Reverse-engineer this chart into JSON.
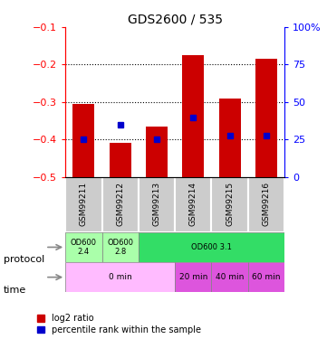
{
  "title": "GDS2600 / 535",
  "samples": [
    "GSM99211",
    "GSM99212",
    "GSM99213",
    "GSM99214",
    "GSM99215",
    "GSM99216"
  ],
  "bar_bottoms": [
    -0.5,
    -0.5,
    -0.5,
    -0.5,
    -0.5,
    -0.5
  ],
  "bar_tops": [
    -0.305,
    -0.408,
    -0.365,
    -0.175,
    -0.29,
    -0.185
  ],
  "blue_dot_pct": [
    25,
    35,
    25,
    40,
    28,
    28
  ],
  "ylim": [
    -0.5,
    -0.1
  ],
  "yticks_left": [
    -0.5,
    -0.4,
    -0.3,
    -0.2,
    -0.1
  ],
  "yticks_right": [
    0,
    25,
    50,
    75,
    100
  ],
  "bar_color": "#cc0000",
  "dot_color": "#0000cc",
  "protocol_groups": [
    {
      "label": "OD600\n2.4",
      "start": 0,
      "end": 1,
      "color": "#aaffaa"
    },
    {
      "label": "OD600\n2.8",
      "start": 1,
      "end": 2,
      "color": "#aaffaa"
    },
    {
      "label": "OD600 3.1",
      "start": 2,
      "end": 6,
      "color": "#33cc66"
    }
  ],
  "time_groups": [
    {
      "label": "0 min",
      "start": 0,
      "end": 3,
      "color": "#ffbbff"
    },
    {
      "label": "20 min",
      "start": 3,
      "end": 4,
      "color": "#dd55dd"
    },
    {
      "label": "40 min",
      "start": 4,
      "end": 5,
      "color": "#dd55dd"
    },
    {
      "label": "60 min",
      "start": 5,
      "end": 6,
      "color": "#dd55dd"
    }
  ],
  "sample_bg_color": "#cccccc",
  "legend_red_label": "log2 ratio",
  "legend_blue_label": "percentile rank within the sample",
  "protocol_label": "protocol",
  "time_label": "time",
  "grid_lines": [
    -0.2,
    -0.3,
    -0.4
  ]
}
